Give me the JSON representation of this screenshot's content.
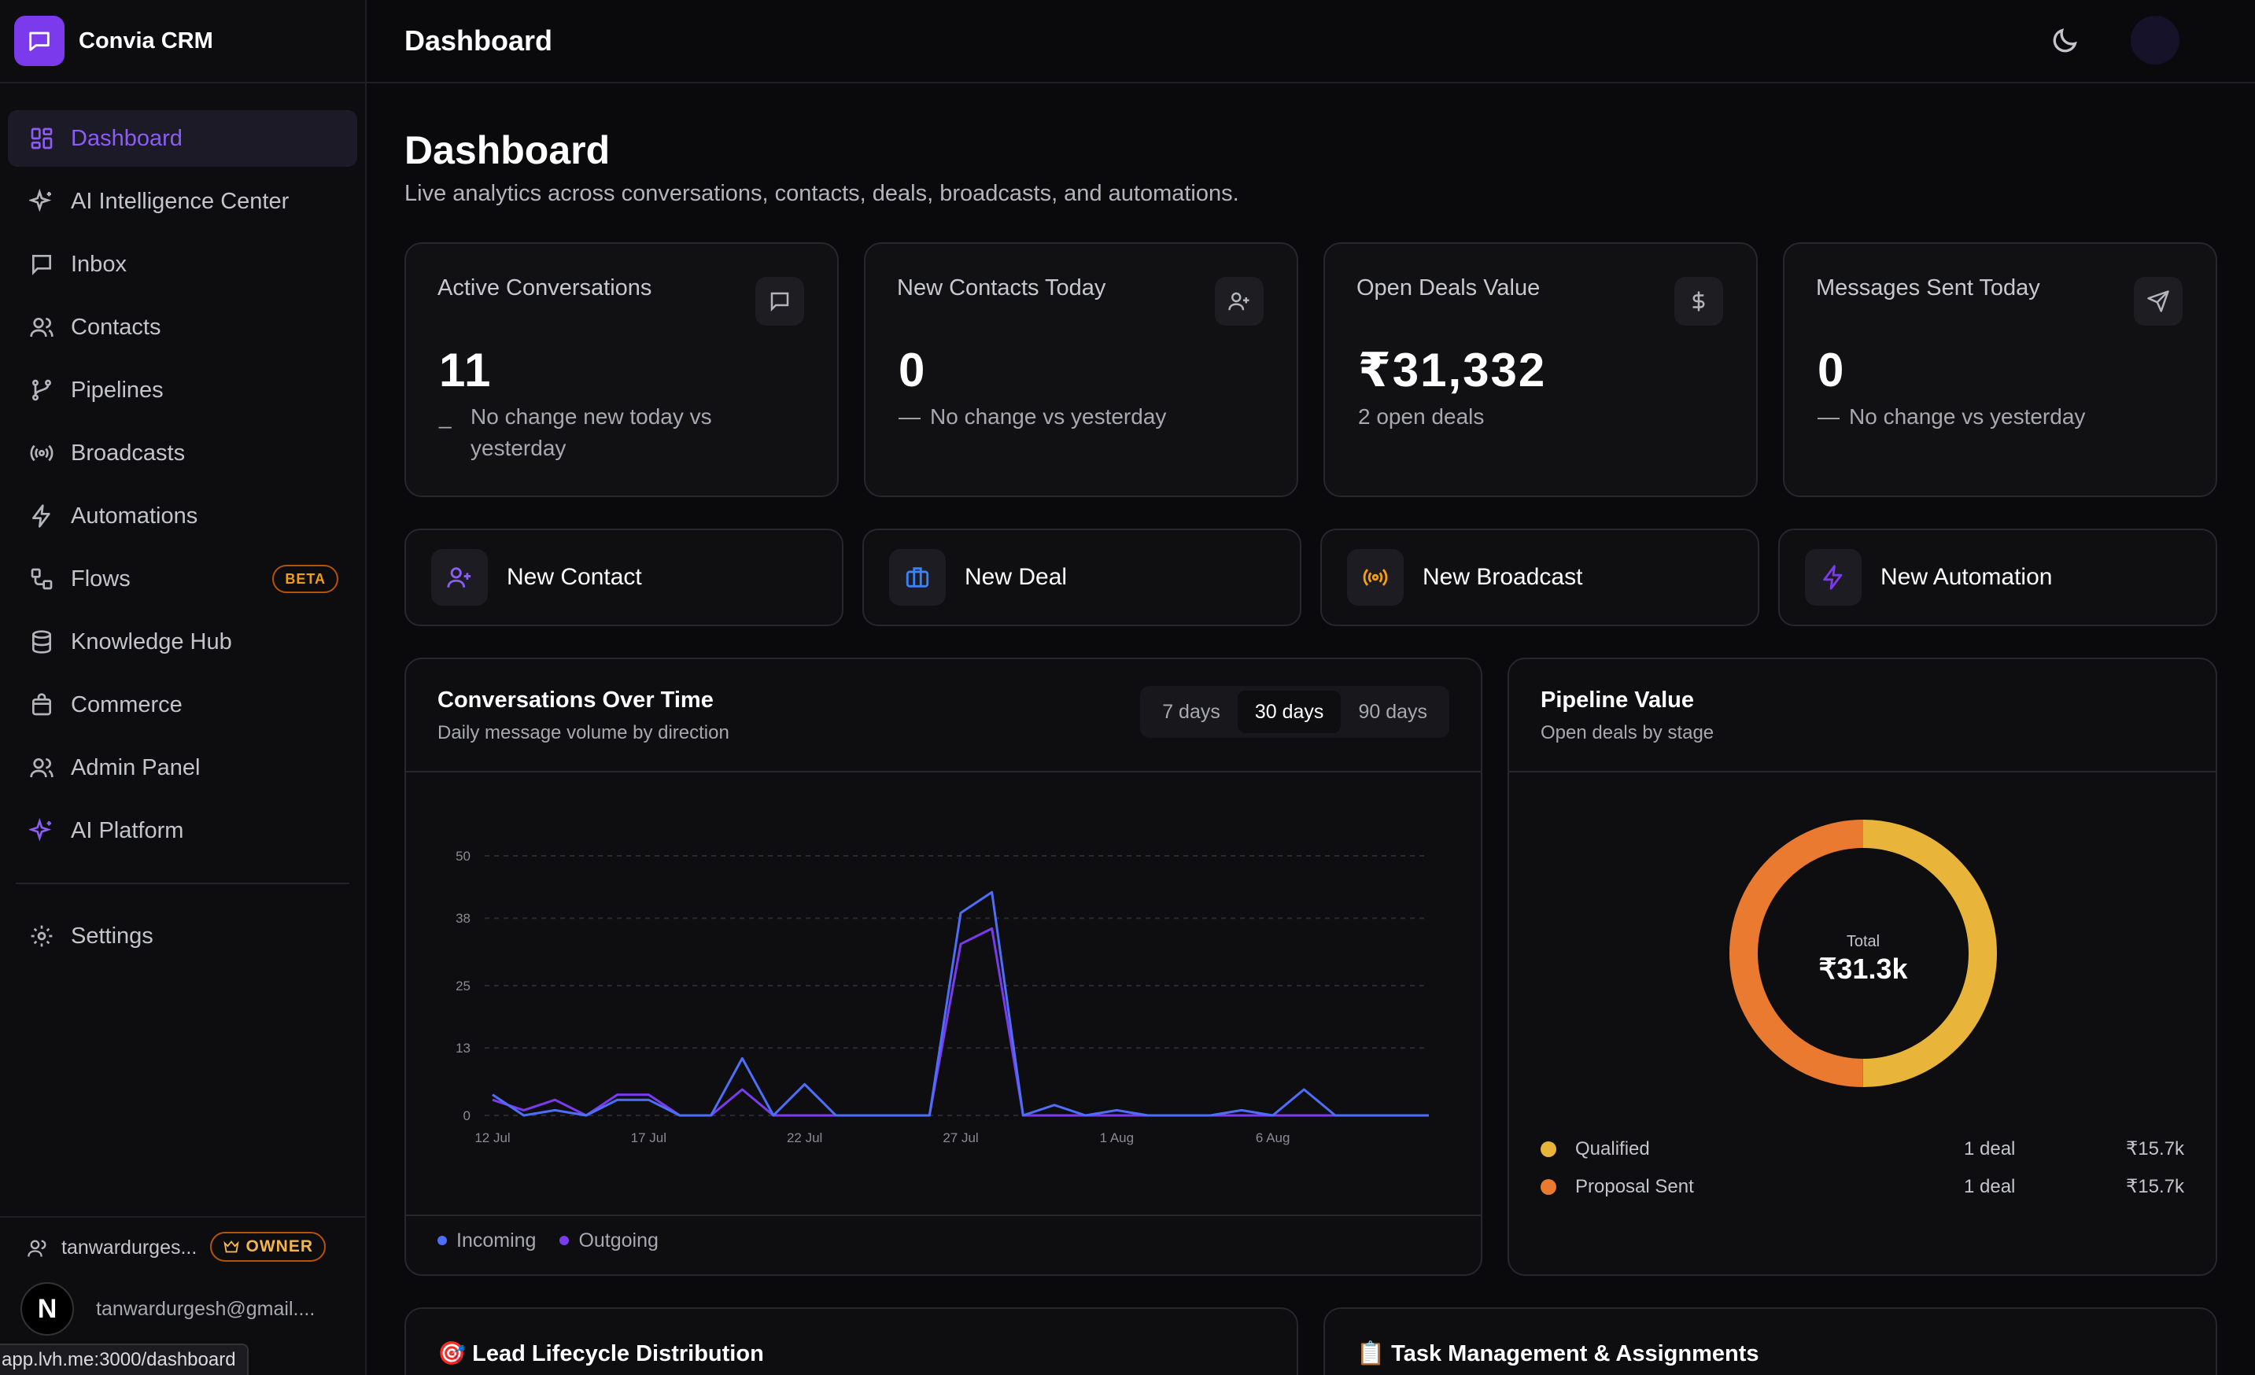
{
  "app": {
    "name": "Convia CRM"
  },
  "topbar": {
    "title": "Dashboard"
  },
  "sidebar": {
    "items": [
      {
        "label": "Dashboard",
        "icon": "dashboard-icon"
      },
      {
        "label": "AI Intelligence Center",
        "icon": "sparkles-icon"
      },
      {
        "label": "Inbox",
        "icon": "message-icon"
      },
      {
        "label": "Contacts",
        "icon": "users-icon"
      },
      {
        "label": "Pipelines",
        "icon": "git-branch-icon"
      },
      {
        "label": "Broadcasts",
        "icon": "radio-icon"
      },
      {
        "label": "Automations",
        "icon": "zap-icon"
      },
      {
        "label": "Flows",
        "icon": "workflow-icon",
        "badge": "BETA"
      },
      {
        "label": "Knowledge Hub",
        "icon": "database-icon"
      },
      {
        "label": "Commerce",
        "icon": "shopping-bag-icon"
      },
      {
        "label": "Admin Panel",
        "icon": "users-icon"
      },
      {
        "label": "AI Platform",
        "icon": "sparkles-icon"
      }
    ],
    "settings": "Settings",
    "user": {
      "name": "tanwardurges...",
      "role": "OWNER",
      "email": "tanwardurgesh@gmail....",
      "avatar_letter": "N"
    },
    "status_url": "app.lvh.me:3000/dashboard"
  },
  "page": {
    "title": "Dashboard",
    "subtitle": "Live analytics across conversations, contacts, deals, broadcasts, and automations."
  },
  "stats": [
    {
      "label": "Active Conversations",
      "value": "11",
      "dash": "_",
      "sub": "No change new today vs yesterday",
      "icon": "message-icon"
    },
    {
      "label": "New Contacts Today",
      "value": "0",
      "dash": "—",
      "sub": "No change vs yesterday",
      "icon": "user-plus-icon"
    },
    {
      "label": "Open Deals Value",
      "value": "₹31,332",
      "dash": "",
      "sub": "2 open deals",
      "icon": "dollar-icon"
    },
    {
      "label": "Messages Sent Today",
      "value": "0",
      "dash": "—",
      "sub": "No change vs yesterday",
      "icon": "send-icon"
    }
  ],
  "actions": [
    {
      "label": "New Contact",
      "icon": "user-plus-icon",
      "color": "#8b5cf6"
    },
    {
      "label": "New Deal",
      "icon": "briefcase-icon",
      "color": "#3b82f6"
    },
    {
      "label": "New Broadcast",
      "icon": "radio-icon",
      "color": "#f59e0b"
    },
    {
      "label": "New Automation",
      "icon": "zap-icon",
      "color": "#7c3aed"
    }
  ],
  "conversations_chart": {
    "title": "Conversations Over Time",
    "subtitle": "Daily message volume by direction",
    "ranges": [
      "7 days",
      "30 days",
      "90 days"
    ],
    "selected_range": "30 days",
    "legend": [
      {
        "name": "Incoming",
        "color": "#4f6ef7"
      },
      {
        "name": "Outgoing",
        "color": "#7c3aed"
      }
    ]
  },
  "chart_data": {
    "type": "line",
    "x": [
      "12 Jul",
      "13 Jul",
      "14 Jul",
      "15 Jul",
      "16 Jul",
      "17 Jul",
      "18 Jul",
      "19 Jul",
      "20 Jul",
      "21 Jul",
      "22 Jul",
      "23 Jul",
      "24 Jul",
      "25 Jul",
      "26 Jul",
      "27 Jul",
      "28 Jul",
      "29 Jul",
      "30 Jul",
      "31 Jul",
      "1 Aug",
      "2 Aug",
      "3 Aug",
      "4 Aug",
      "5 Aug",
      "6 Aug",
      "7 Aug",
      "8 Aug",
      "9 Aug",
      "10 Aug",
      "11 Aug"
    ],
    "xticks": [
      "12 Jul",
      "17 Jul",
      "22 Jul",
      "27 Jul",
      "1 Aug",
      "6 Aug"
    ],
    "yticks": [
      0,
      13,
      25,
      38,
      50
    ],
    "ylim": [
      0,
      50
    ],
    "series": [
      {
        "name": "Incoming",
        "color": "#4f6ef7",
        "values": [
          4,
          0,
          1,
          0,
          3,
          3,
          0,
          0,
          11,
          0,
          6,
          0,
          0,
          0,
          0,
          39,
          43,
          0,
          2,
          0,
          1,
          0,
          0,
          0,
          1,
          0,
          5,
          0,
          0,
          0,
          0
        ]
      },
      {
        "name": "Outgoing",
        "color": "#7c3aed",
        "values": [
          3,
          1,
          3,
          0,
          4,
          4,
          0,
          0,
          5,
          0,
          0,
          0,
          0,
          0,
          0,
          33,
          36,
          0,
          0,
          0,
          0,
          0,
          0,
          0,
          0,
          0,
          0,
          0,
          0,
          0,
          0
        ]
      }
    ],
    "grid": true
  },
  "pipeline": {
    "title": "Pipeline Value",
    "subtitle": "Open deals by stage",
    "total_label": "Total",
    "total_value": "₹31.3k",
    "stages": [
      {
        "name": "Qualified",
        "count": "1 deal",
        "value": "₹15.7k",
        "amount": 15666,
        "color": "#e8b43a"
      },
      {
        "name": "Proposal Sent",
        "count": "1 deal",
        "value": "₹15.7k",
        "amount": 15666,
        "color": "#ea7a30"
      }
    ]
  },
  "bottom": {
    "lead": "🎯 Lead Lifecycle Distribution",
    "tasks": "📋 Task Management & Assignments"
  }
}
